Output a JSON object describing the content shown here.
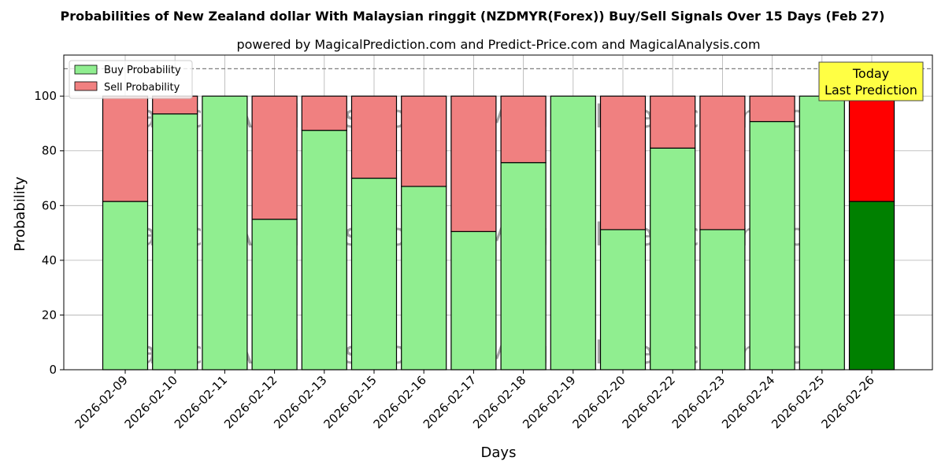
{
  "chart_data": {
    "type": "bar",
    "stacked": true,
    "title": "Probabilities of New Zealand dollar With Malaysian ringgit (NZDMYR(Forex)) Buy/Sell Signals Over 15 Days (Feb 27)",
    "subtitle": "powered by MagicalPrediction.com and Predict-Price.com and MagicalAnalysis.com",
    "xlabel": "Days",
    "ylabel": "Probability",
    "ylim": [
      0,
      115
    ],
    "yticks": [
      0,
      20,
      40,
      60,
      80,
      100
    ],
    "reference_line": 110,
    "grid": true,
    "legend_position": "top-left",
    "categories": [
      "2026-02-09",
      "2026-02-10",
      "2026-02-11",
      "2026-02-12",
      "2026-02-13",
      "2026-02-15",
      "2026-02-16",
      "2026-02-17",
      "2026-02-18",
      "2026-02-19",
      "2026-02-20",
      "2026-02-22",
      "2026-02-23",
      "2026-02-24",
      "2026-02-25",
      "2026-02-26"
    ],
    "series": [
      {
        "name": "Buy Probability",
        "color": "#90ee90",
        "highlight_color": "#008000",
        "values": [
          61.5,
          93.5,
          100,
          55,
          87.5,
          70,
          67,
          50.5,
          75.7,
          100,
          51.2,
          81,
          51.2,
          90.7,
          100,
          61.5
        ]
      },
      {
        "name": "Sell Probability",
        "color": "#f08080",
        "highlight_color": "#ff0000",
        "values": [
          38.5,
          6.5,
          0,
          45,
          12.5,
          30,
          33,
          49.5,
          24.3,
          0,
          48.8,
          19,
          48.8,
          9.3,
          0,
          38.5
        ]
      }
    ],
    "highlight_index": 15,
    "annotation": {
      "line1": "Today",
      "line2": "Last Prediction",
      "color": "#ffff44"
    },
    "watermarks": [
      "MagicalAnalysis.com",
      "MagicalPrediction.com"
    ]
  }
}
